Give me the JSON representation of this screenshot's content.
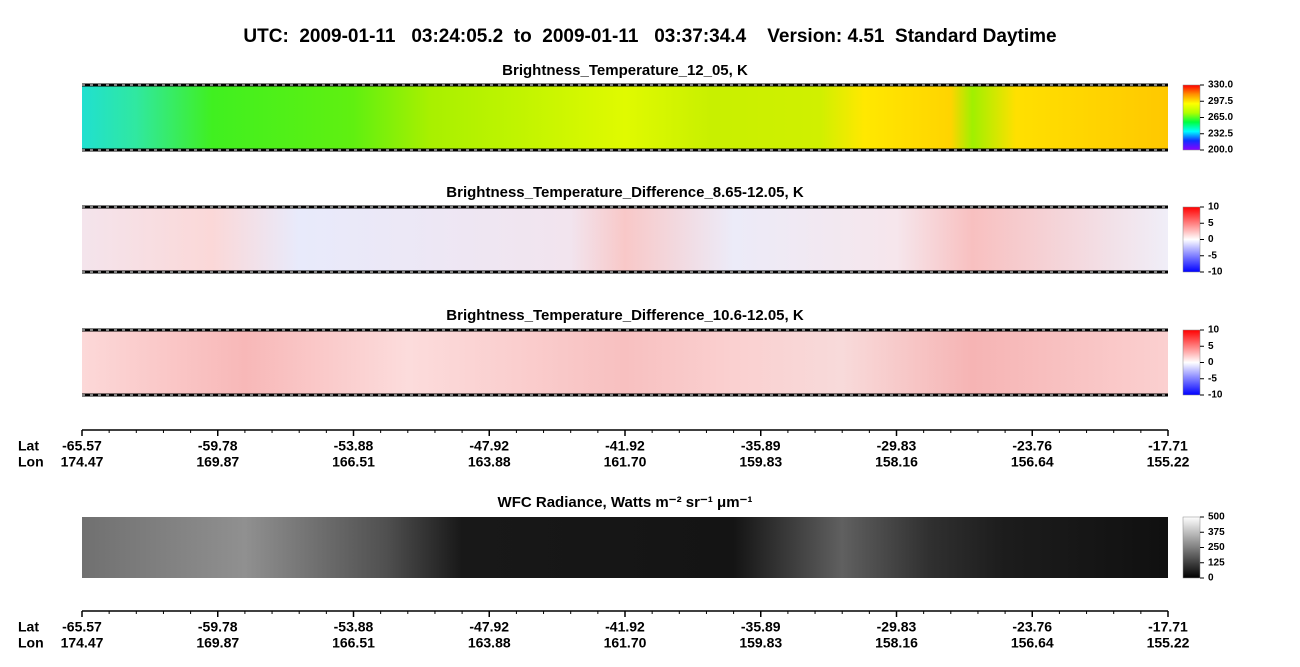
{
  "title": "UTC:  2009-01-11   03:24:05.2  to  2009-01-11   03:37:34.4    Version: 4.51  Standard Daytime",
  "chart_data": [
    {
      "type": "heatmap",
      "title": "Brightness_Temperature_12_05, K",
      "clim": [
        200,
        330
      ],
      "colorbar_ticks": [
        {
          "value": 330,
          "label": "330.0"
        },
        {
          "value": 297.5,
          "label": "297.5"
        },
        {
          "value": 265,
          "label": "265.0"
        },
        {
          "value": 232.5,
          "label": "232.5"
        },
        {
          "value": 200,
          "label": "200.0"
        }
      ],
      "colormap": [
        "#8a00ff",
        "#1030ff",
        "#00ffff",
        "#00ff40",
        "#b0ff00",
        "#ffff00",
        "#ff9000",
        "#ff0000"
      ]
    },
    {
      "type": "heatmap",
      "title": "Brightness_Temperature_Difference_8.65-12.05, K",
      "clim": [
        -10,
        10
      ],
      "colorbar_ticks": [
        10,
        5,
        0,
        -5,
        -10
      ],
      "colormap": [
        "#0000ff",
        "#ffffff",
        "#ff0000"
      ]
    },
    {
      "type": "heatmap",
      "title": "Brightness_Temperature_Difference_10.6-12.05, K",
      "clim": [
        -10,
        10
      ],
      "colorbar_ticks": [
        10,
        5,
        0,
        -5,
        -10
      ],
      "colormap": [
        "#0000ff",
        "#ffffff",
        "#ff0000"
      ]
    },
    {
      "type": "heatmap",
      "title": "WFC Radiance, Watts m⁻² sr⁻¹ μm⁻¹",
      "clim": [
        0,
        500
      ],
      "colorbar_ticks": [
        500,
        375,
        250,
        125,
        0
      ],
      "colormap": [
        "#000000",
        "#ffffff"
      ]
    }
  ],
  "axes": [
    {
      "lat_label": "Lat",
      "lon_label": "Lon",
      "lat": [
        -65.57,
        -59.78,
        -53.88,
        -47.92,
        -41.92,
        -35.89,
        -29.83,
        -23.76,
        -17.71
      ],
      "lon": [
        174.47,
        169.87,
        166.51,
        163.88,
        161.7,
        159.83,
        158.16,
        156.64,
        155.22
      ]
    },
    {
      "lat_label": "Lat",
      "lon_label": "Lon",
      "lat": [
        -65.57,
        -59.78,
        -53.88,
        -47.92,
        -41.92,
        -35.89,
        -29.83,
        -23.76,
        -17.71
      ],
      "lon": [
        174.47,
        169.87,
        166.51,
        163.88,
        161.7,
        159.83,
        158.16,
        156.64,
        155.22
      ]
    }
  ]
}
